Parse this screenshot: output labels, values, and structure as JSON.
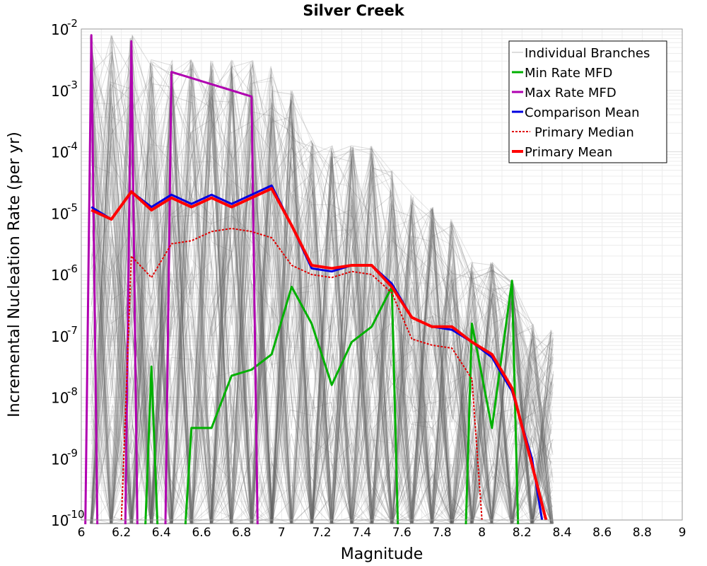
{
  "chart_data": {
    "type": "line",
    "title": "Silver Creek",
    "xlabel": "Magnitude",
    "ylabel": "Incremental Nucleation Rate (per yr)",
    "xlim": [
      6,
      9
    ],
    "ylim_log10": [
      -10,
      -2
    ],
    "y_scale": "log",
    "x_ticks": [
      "6",
      "6.2",
      "6.4",
      "6.6",
      "6.8",
      "7",
      "7.2",
      "7.4",
      "7.6",
      "7.8",
      "8",
      "8.2",
      "8.4",
      "8.6",
      "8.8",
      "9"
    ],
    "y_tick_base": "10",
    "y_tick_exponents": [
      "-2",
      "-3",
      "-4",
      "-5",
      "-6",
      "-7",
      "-8",
      "-9",
      "-10"
    ],
    "grid": true,
    "legend_position": "top-right",
    "legend": [
      {
        "label": "Individual Branches",
        "color": "#bbbbbb",
        "style": "thin"
      },
      {
        "label": "Min Rate MFD",
        "color": "#00b000",
        "style": "solid"
      },
      {
        "label": "Max Rate MFD",
        "color": "#b000b0",
        "style": "solid"
      },
      {
        "label": "Comparison Mean",
        "color": "#0000e0",
        "style": "solid"
      },
      {
        "label": "Primary Median",
        "color": "#e00000",
        "style": "dotted"
      },
      {
        "label": "Primary Mean",
        "color": "#ff0000",
        "style": "thick"
      }
    ],
    "branch_envelope": {
      "name": "Individual Branches",
      "x": [
        6.05,
        6.15,
        6.25,
        6.35,
        6.45,
        6.55,
        6.65,
        6.75,
        6.85,
        6.95,
        7.05,
        7.15,
        7.25,
        7.35,
        7.45,
        7.55,
        7.65,
        7.75,
        7.85,
        7.95,
        8.05,
        8.15,
        8.25,
        8.35
      ],
      "upper_log10": [
        -2.1,
        -2.1,
        -2.1,
        -2.5,
        -2.5,
        -2.5,
        -2.5,
        -2.5,
        -2.5,
        -2.6,
        -3.0,
        -3.8,
        -3.9,
        -3.9,
        -3.9,
        -4.3,
        -4.7,
        -4.9,
        -5.1,
        -5.8,
        -5.8,
        -6.1,
        -6.8,
        -6.9
      ]
    },
    "series": [
      {
        "name": "Min Rate MFD",
        "color": "#00b000",
        "x": [
          6.35,
          6.45,
          6.55,
          6.65,
          6.75,
          6.85,
          6.95,
          7.05,
          7.15,
          7.25,
          7.35,
          7.45,
          7.55,
          7.95,
          8.05,
          8.15
        ],
        "log10": [
          -7.5,
          -10,
          -8.5,
          -8.5,
          -7.65,
          -7.55,
          -7.3,
          -6.2,
          -6.8,
          -7.8,
          -7.1,
          -6.85,
          -6.2,
          -6.8,
          -8.5,
          -6.1
        ],
        "drops_to_axis_after": [
          6.35,
          7.55,
          8.15
        ],
        "rises_from_axis_before": [
          6.35,
          6.55,
          7.95
        ]
      },
      {
        "name": "Max Rate MFD",
        "color": "#b000b0",
        "x": [
          6.05,
          6.25,
          6.45,
          6.85
        ],
        "log10": [
          -2.1,
          -2.2,
          -2.7,
          -3.1
        ],
        "drops_to_axis_after": [
          6.05,
          6.25,
          6.85
        ],
        "rises_from_axis_before": [
          6.05,
          6.25,
          6.45
        ]
      },
      {
        "name": "Comparison Mean",
        "color": "#0000e0",
        "x": [
          6.05,
          6.15,
          6.25,
          6.35,
          6.45,
          6.55,
          6.65,
          6.75,
          6.85,
          6.95,
          7.05,
          7.15,
          7.25,
          7.35,
          7.45,
          7.55,
          7.65,
          7.75,
          7.85,
          7.95,
          8.05,
          8.15,
          8.25,
          8.3
        ],
        "log10": [
          -4.9,
          -5.1,
          -4.65,
          -4.9,
          -4.7,
          -4.85,
          -4.7,
          -4.85,
          -4.7,
          -4.55,
          -5.2,
          -5.9,
          -5.95,
          -5.85,
          -5.85,
          -6.15,
          -6.7,
          -6.85,
          -6.9,
          -7.1,
          -7.35,
          -7.9,
          -9.0,
          -10
        ]
      },
      {
        "name": "Primary Median",
        "color": "#e00000",
        "x": [
          6.2,
          6.25,
          6.35,
          6.45,
          6.55,
          6.65,
          6.75,
          6.85,
          6.95,
          7.05,
          7.15,
          7.25,
          7.35,
          7.45,
          7.55,
          7.65,
          7.75,
          7.85,
          7.95,
          8.0
        ],
        "log10": [
          -10,
          -5.7,
          -6.05,
          -5.5,
          -5.45,
          -5.3,
          -5.25,
          -5.3,
          -5.4,
          -5.85,
          -6.0,
          -6.05,
          -5.95,
          -6.0,
          -6.3,
          -7.05,
          -7.15,
          -7.2,
          -7.7,
          -10
        ]
      },
      {
        "name": "Primary Mean",
        "color": "#ff0000",
        "x": [
          6.05,
          6.15,
          6.25,
          6.35,
          6.45,
          6.55,
          6.65,
          6.75,
          6.85,
          6.95,
          7.05,
          7.15,
          7.25,
          7.35,
          7.45,
          7.55,
          7.65,
          7.75,
          7.85,
          7.95,
          8.05,
          8.15,
          8.25,
          8.32
        ],
        "log10": [
          -4.95,
          -5.1,
          -4.65,
          -4.95,
          -4.75,
          -4.9,
          -4.75,
          -4.9,
          -4.75,
          -4.6,
          -5.2,
          -5.85,
          -5.9,
          -5.85,
          -5.85,
          -6.2,
          -6.7,
          -6.85,
          -6.85,
          -7.1,
          -7.3,
          -7.85,
          -9.1,
          -10
        ]
      }
    ]
  }
}
